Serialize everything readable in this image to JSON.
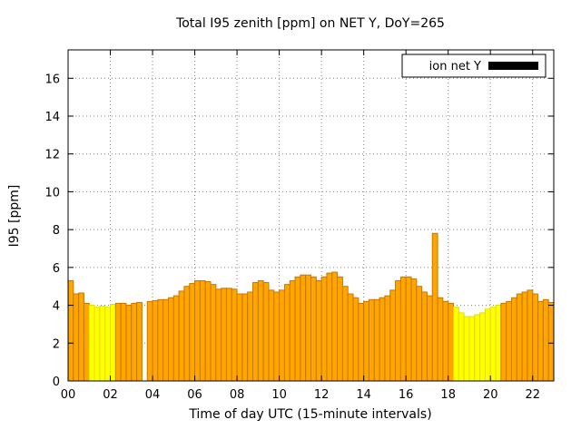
{
  "chart_data": {
    "type": "bar",
    "title": "Total I95 zenith [ppm] on NET Y, DoY=265",
    "xlabel": "Time of day UTC (15-minute intervals)",
    "ylabel": "I95 [ppm]",
    "ylim": [
      0,
      17.5
    ],
    "yticks": [
      0,
      2,
      4,
      6,
      8,
      10,
      12,
      14,
      16
    ],
    "xtick_hours": [
      0,
      2,
      4,
      6,
      8,
      10,
      12,
      14,
      16,
      18,
      20,
      22
    ],
    "xtick_labels": [
      "00",
      "02",
      "04",
      "06",
      "08",
      "10",
      "12",
      "14",
      "16",
      "18",
      "20",
      "22"
    ],
    "x_range_hours": [
      0,
      23
    ],
    "interval_minutes": 15,
    "start_time": "00:00",
    "values": [
      5.3,
      4.6,
      4.65,
      4.1,
      4.0,
      3.9,
      3.95,
      3.9,
      4.05,
      4.1,
      4.1,
      4.0,
      4.1,
      4.15,
      0,
      4.2,
      4.25,
      4.3,
      4.3,
      4.4,
      4.5,
      4.75,
      5.0,
      5.15,
      5.3,
      5.3,
      5.25,
      5.1,
      4.85,
      4.9,
      4.9,
      4.85,
      4.6,
      4.6,
      4.7,
      5.2,
      5.3,
      5.2,
      4.8,
      4.7,
      4.8,
      5.1,
      5.3,
      5.5,
      5.6,
      5.6,
      5.5,
      5.3,
      5.5,
      5.7,
      5.75,
      5.5,
      5.0,
      4.6,
      4.4,
      4.1,
      4.2,
      4.3,
      4.3,
      4.4,
      4.5,
      4.8,
      5.3,
      5.5,
      5.5,
      5.4,
      5.0,
      4.7,
      4.5,
      7.8,
      4.4,
      4.2,
      4.1,
      3.9,
      3.6,
      3.4,
      3.4,
      3.5,
      3.6,
      3.8,
      3.9,
      4.0,
      4.1,
      4.2,
      4.4,
      4.6,
      4.7,
      4.8,
      4.6,
      4.2,
      4.3,
      4.15
    ],
    "yellow_indices": [
      4,
      5,
      6,
      7,
      8,
      73,
      74,
      75,
      76,
      77,
      78,
      79,
      80,
      81
    ],
    "grid": "dotted",
    "legend_position": "top-right"
  },
  "legend": {
    "label": "ion net Y"
  },
  "colors": {
    "bar_orange_fill": "#FFA500",
    "bar_orange_stroke": "#C87800",
    "bar_yellow_fill": "#FFFF00",
    "bar_yellow_stroke": "#E0E000",
    "grid": "#808080",
    "border": "#000000",
    "legend_swatch": "#000000"
  }
}
